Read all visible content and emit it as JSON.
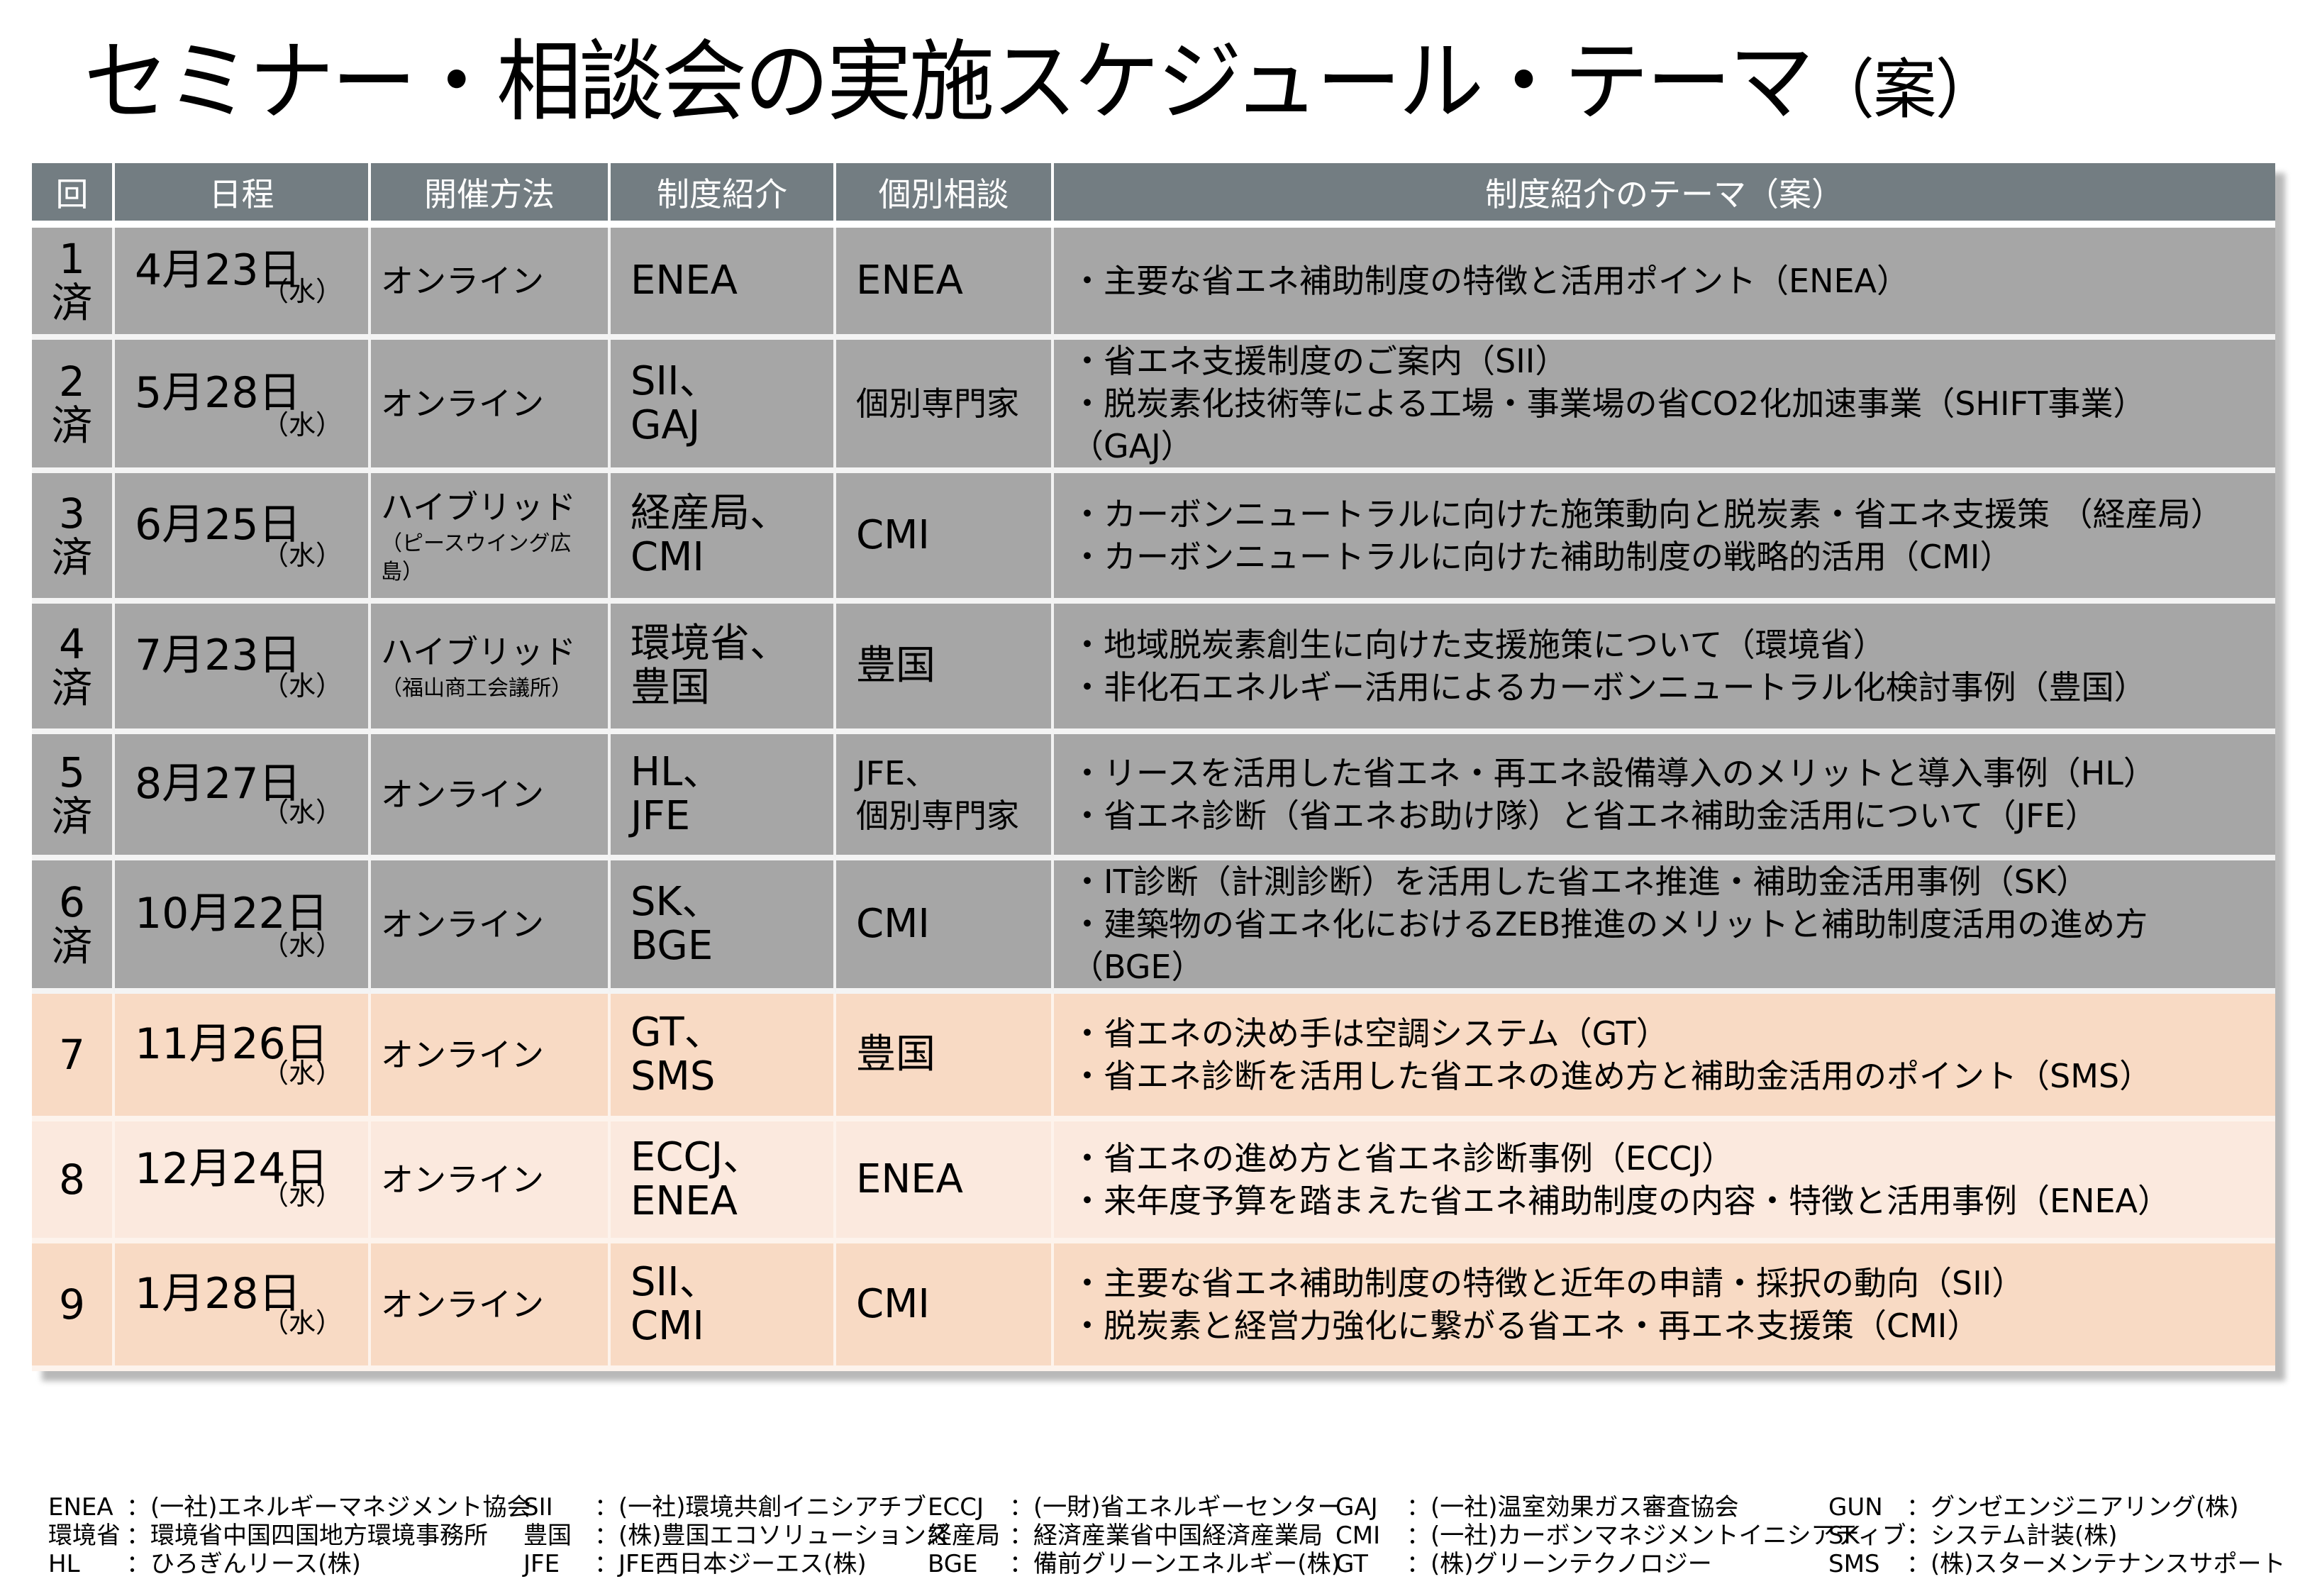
{
  "title": {
    "main": "セミナー・相談会の実施スケジュール・テーマ",
    "suffix": "（案）"
  },
  "colors": {
    "header_bg": "#737d82",
    "done_row_bg": "#a6a6a6",
    "upcoming_row_bg_a": "#f8dac4",
    "upcoming_row_bg_b": "#fbe9de"
  },
  "table": {
    "headers": [
      "回",
      "日程",
      "開催方法",
      "制度紹介",
      "個別相談",
      "制度紹介のテーマ（案）"
    ],
    "rows": [
      {
        "num": "1",
        "status": "済",
        "date": "4月23日",
        "weekday": "（水）",
        "method": "オンライン",
        "method_sub": "",
        "intro": [
          "ENEA"
        ],
        "consult": [
          "ENEA"
        ],
        "themes": [
          "・主要な省エネ補助制度の特徴と活用ポイント（ENEA）"
        ]
      },
      {
        "num": "2",
        "status": "済",
        "date": "5月28日",
        "weekday": "（水）",
        "method": "オンライン",
        "method_sub": "",
        "intro": [
          "SII、",
          "GAJ"
        ],
        "consult": [
          "個別専門家"
        ],
        "themes": [
          "・省エネ支援制度のご案内（SII）",
          "・脱炭素化技術等による工場・事業場の省CO2化加速事業（SHIFT事業）",
          "（GAJ）"
        ]
      },
      {
        "num": "3",
        "status": "済",
        "date": "6月25日",
        "weekday": "（水）",
        "method": "ハイブリッド",
        "method_sub": "（ピースウイング広島）",
        "intro": [
          "経産局、",
          "CMI"
        ],
        "consult": [
          "CMI"
        ],
        "themes": [
          "・カーボンニュートラルに向けた施策動向と脱炭素・省エネ支援策 （経産局）",
          "・カーボンニュートラルに向けた補助制度の戦略的活用（CMI）"
        ]
      },
      {
        "num": "4",
        "status": "済",
        "date": "7月23日",
        "weekday": "（水）",
        "method": "ハイブリッド",
        "method_sub": "（福山商工会議所）",
        "intro": [
          "環境省、",
          "豊国"
        ],
        "consult": [
          "豊国"
        ],
        "themes": [
          "・地域脱炭素創生に向けた支援施策について（環境省）",
          "・非化石エネルギー活用によるカーボンニュートラル化検討事例（豊国）"
        ]
      },
      {
        "num": "5",
        "status": "済",
        "date": "8月27日",
        "weekday": "（水）",
        "method": "オンライン",
        "method_sub": "",
        "intro": [
          "HL、",
          "JFE"
        ],
        "consult": [
          "JFE、",
          "個別専門家"
        ],
        "themes": [
          "・リースを活用した省エネ・再エネ設備導入のメリットと導入事例（HL）",
          "・省エネ診断（省エネお助け隊）と省エネ補助金活用について（JFE）"
        ]
      },
      {
        "num": "6",
        "status": "済",
        "date": "10月22日",
        "weekday": "（水）",
        "method": "オンライン",
        "method_sub": "",
        "intro": [
          "SK、",
          "BGE"
        ],
        "consult": [
          "CMI"
        ],
        "themes": [
          "・IT診断（計測診断）を活用した省エネ推進・補助金活用事例（SK）",
          "・建築物の省エネ化におけるZEB推進のメリットと補助制度活用の進め方",
          " （BGE）"
        ]
      },
      {
        "num": "7",
        "status": "",
        "date": "11月26日",
        "weekday": "（水）",
        "method": "オンライン",
        "method_sub": "",
        "intro": [
          "GT、",
          "SMS"
        ],
        "consult": [
          "豊国"
        ],
        "themes": [
          "・省エネの決め手は空調システム（GT）",
          "・省エネ診断を活用した省エネの進め方と補助金活用のポイント（SMS）"
        ]
      },
      {
        "num": "8",
        "status": "",
        "date": "12月24日",
        "weekday": "（水）",
        "method": "オンライン",
        "method_sub": "",
        "intro": [
          "ECCJ、",
          "ENEA"
        ],
        "consult": [
          "ENEA"
        ],
        "themes": [
          "・省エネの進め方と省エネ診断事例（ECCJ）",
          "・来年度予算を踏まえた省エネ補助制度の内容・特徴と活用事例（ENEA）"
        ]
      },
      {
        "num": "9",
        "status": "",
        "date": "1月28日",
        "weekday": "（水）",
        "method": "オンライン",
        "method_sub": "",
        "intro": [
          "SII、",
          "CMI"
        ],
        "consult": [
          "CMI"
        ],
        "themes": [
          "・主要な省エネ補助制度の特徴と近年の申請・採択の動向（SII）",
          "・脱炭素と経営力強化に繋がる省エネ・再エネ支援策（CMI）"
        ]
      }
    ]
  },
  "legend": {
    "columns": [
      [
        {
          "key": "ENEA",
          "value": "：(一社)エネルギーマネジメント協会"
        },
        {
          "key": "環境省",
          "value": "：環境省中国四国地方環境事務所"
        },
        {
          "key": "HL",
          "value": "：ひろぎんリース(株)"
        }
      ],
      [
        {
          "key": "SII",
          "value": "：(一社)環境共創イニシアチブ"
        },
        {
          "key": "豊国",
          "value": "：(株)豊国エコソリューションズ"
        },
        {
          "key": "JFE",
          "value": "：JFE西日本ジーエス(株)"
        }
      ],
      [
        {
          "key": "ECCJ",
          "value": "：(一財)省エネルギーセンター"
        },
        {
          "key": "経産局",
          "value": "：経済産業省中国経済産業局"
        },
        {
          "key": "BGE",
          "value": "：備前グリーンエネルギー(株)"
        }
      ],
      [
        {
          "key": "GAJ",
          "value": "：(一社)温室効果ガス審査協会"
        },
        {
          "key": "CMI",
          "value": "：(一社)カーボンマネジメントイニシアティブ"
        },
        {
          "key": "GT",
          "value": "：(株)グリーンテクノロジー"
        }
      ],
      [
        {
          "key": "GUN",
          "value": "：グンゼエンジニアリング(株)"
        },
        {
          "key": "SK",
          "value": "：システム計装(株)"
        },
        {
          "key": "SMS",
          "value": "：(株)スターメンテナンスサポート"
        }
      ]
    ]
  }
}
